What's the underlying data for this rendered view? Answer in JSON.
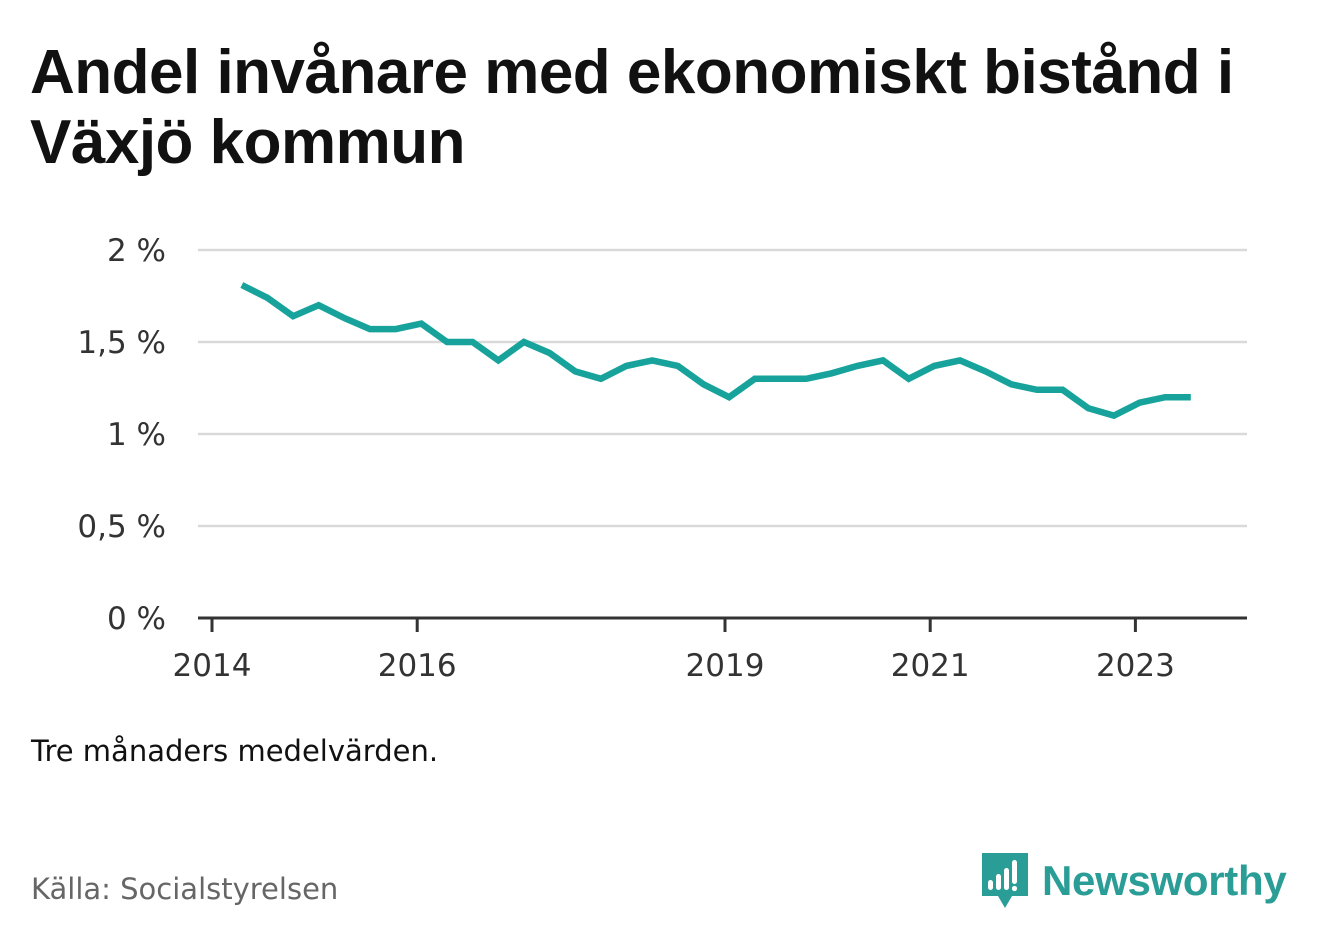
{
  "title": "Andel invånare med ekonomiskt bistånd i Växjö kommun",
  "note": "Tre månaders medelvärden.",
  "source": "Källa: Socialstyrelsen",
  "brand": {
    "name": "Newsworthy",
    "icon": "newsworthy-logo-icon",
    "color": "#2a9d96"
  },
  "chart_data": {
    "type": "line",
    "title": "Andel invånare med ekonomiskt bistånd i Växjö kommun",
    "xlabel": "",
    "ylabel": "",
    "ylim": [
      0,
      2
    ],
    "xlim": [
      2014,
      2024
    ],
    "yticks": [
      0,
      0.5,
      1,
      1.5,
      2
    ],
    "ytick_labels": [
      "0 %",
      "0,5 %",
      "1 %",
      "1,5 %",
      "2 %"
    ],
    "xticks": [
      2014,
      2016,
      2019,
      2021,
      2023
    ],
    "xtick_labels": [
      "2014",
      "2016",
      "2019",
      "2021",
      "2023"
    ],
    "grid": true,
    "line_color": "#17a39b",
    "series": [
      {
        "x": [
          2014.29,
          2014.54,
          2014.79,
          2015.04,
          2015.29,
          2015.54,
          2015.79,
          2016.04,
          2016.29,
          2016.54,
          2016.79,
          2017.04,
          2017.29,
          2017.54,
          2017.79,
          2018.04,
          2018.29,
          2018.54,
          2018.79,
          2019.04,
          2019.29,
          2019.54,
          2019.79,
          2020.04,
          2020.29,
          2020.54,
          2020.79,
          2021.04,
          2021.29,
          2021.54,
          2021.79,
          2022.04,
          2022.29,
          2022.54,
          2022.79,
          2023.04,
          2023.29,
          2023.54
        ],
        "y": [
          1.81,
          1.74,
          1.64,
          1.7,
          1.63,
          1.57,
          1.57,
          1.6,
          1.5,
          1.5,
          1.4,
          1.5,
          1.44,
          1.34,
          1.3,
          1.37,
          1.4,
          1.37,
          1.27,
          1.2,
          1.3,
          1.3,
          1.3,
          1.33,
          1.37,
          1.4,
          1.3,
          1.37,
          1.4,
          1.34,
          1.27,
          1.24,
          1.24,
          1.14,
          1.1,
          1.17,
          1.2,
          1.2
        ]
      }
    ]
  }
}
